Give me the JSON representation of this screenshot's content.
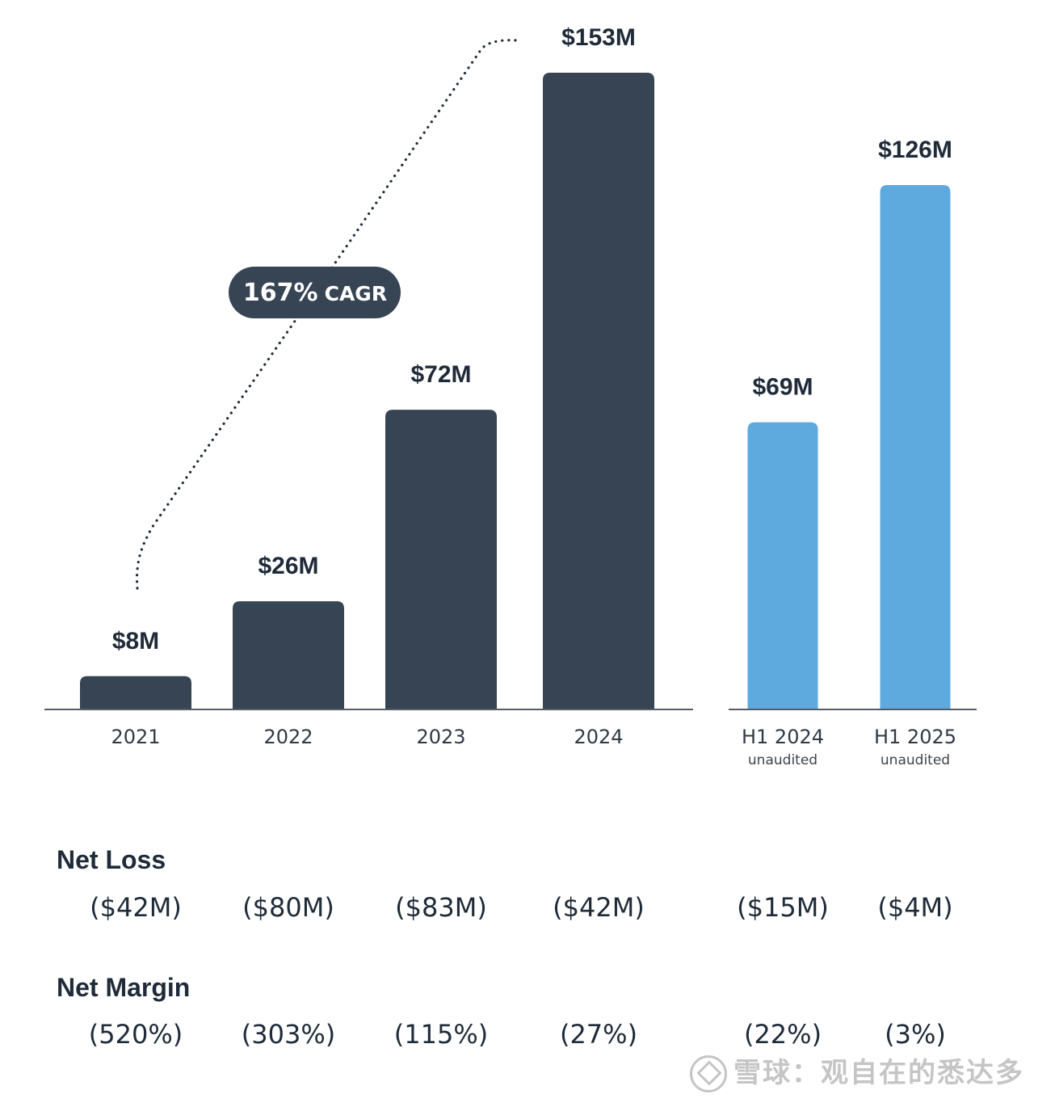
{
  "chart_data": {
    "type": "bar",
    "groups": [
      {
        "categories": [
          "2021",
          "2022",
          "2023",
          "2024"
        ],
        "values": [
          8,
          26,
          72,
          153
        ],
        "value_labels": [
          "$8M",
          "$26M",
          "$72M",
          "$153M"
        ],
        "color": "#364454"
      },
      {
        "categories": [
          "H1 2024",
          "H1 2025"
        ],
        "sublabels": [
          "unaudited",
          "unaudited"
        ],
        "values": [
          69,
          126
        ],
        "value_labels": [
          "$69M",
          "$126M"
        ],
        "color": "#5eaade"
      }
    ],
    "ylim": [
      0,
      153
    ],
    "annotation": "167% CAGR",
    "grid": false
  },
  "metrics": [
    {
      "title": "Net Loss",
      "values": [
        "($42M)",
        "($80M)",
        "($83M)",
        "($42M)",
        "($15M)",
        "($4M)"
      ]
    },
    {
      "title": "Net Margin",
      "values": [
        "(520%)",
        "(303%)",
        "(115%)",
        "(27%)",
        "(22%)",
        "(3%)"
      ]
    }
  ],
  "watermark": "雪球：观自在的悉达多",
  "colors": {
    "dark_bar": "#364454",
    "light_bar": "#5eaade",
    "text": "#1f2b38",
    "axis": "#555d66"
  }
}
